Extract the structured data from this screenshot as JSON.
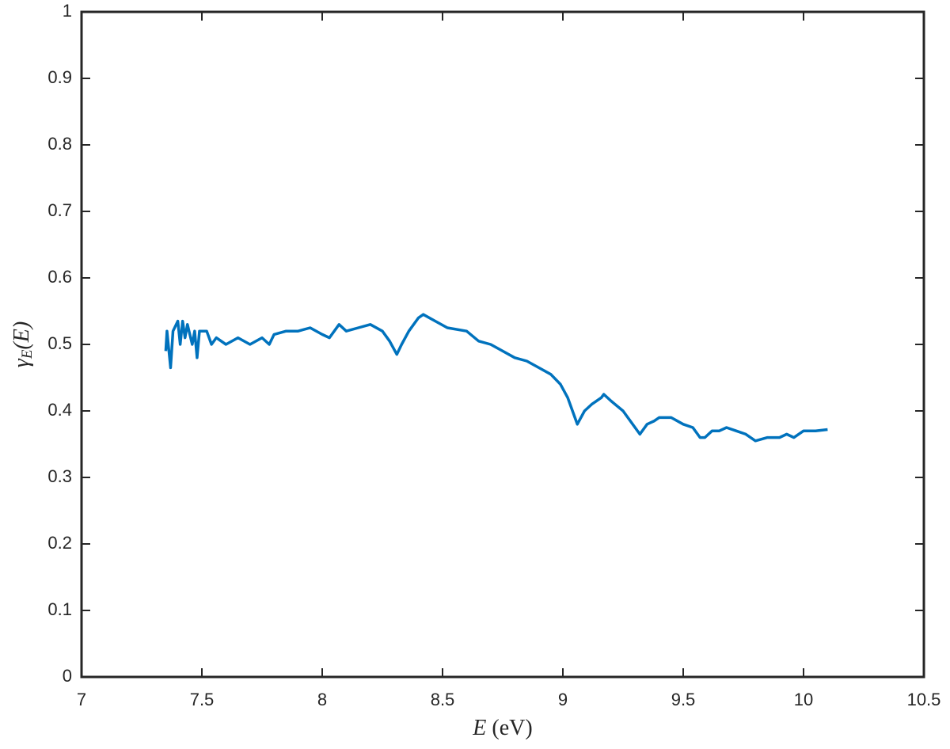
{
  "chart_data": {
    "type": "line",
    "x_label": {
      "variable": "E",
      "unit": "(eV)"
    },
    "y_label": {
      "symbol": "γ",
      "subscript": "E",
      "argument": "(E)"
    },
    "color": "#0072bd",
    "x": [
      7.35,
      7.355,
      7.37,
      7.38,
      7.4,
      7.41,
      7.42,
      7.43,
      7.44,
      7.46,
      7.47,
      7.48,
      7.49,
      7.52,
      7.54,
      7.56,
      7.6,
      7.65,
      7.7,
      7.75,
      7.78,
      7.8,
      7.85,
      7.9,
      7.95,
      8.0,
      8.03,
      8.07,
      8.1,
      8.15,
      8.2,
      8.25,
      8.28,
      8.31,
      8.33,
      8.36,
      8.4,
      8.42,
      8.47,
      8.52,
      8.6,
      8.65,
      8.7,
      8.75,
      8.8,
      8.85,
      8.9,
      8.95,
      8.99,
      9.02,
      9.05,
      9.06,
      9.09,
      9.12,
      9.16,
      9.17,
      9.2,
      9.25,
      9.3,
      9.32,
      9.35,
      9.38,
      9.4,
      9.45,
      9.5,
      9.54,
      9.57,
      9.59,
      9.62,
      9.65,
      9.68,
      9.72,
      9.76,
      9.8,
      9.85,
      9.9,
      9.93,
      9.96,
      10.0,
      10.05,
      10.1
    ],
    "values": [
      0.49,
      0.52,
      0.465,
      0.52,
      0.535,
      0.5,
      0.535,
      0.51,
      0.53,
      0.5,
      0.52,
      0.48,
      0.52,
      0.52,
      0.5,
      0.51,
      0.5,
      0.51,
      0.5,
      0.51,
      0.5,
      0.515,
      0.52,
      0.52,
      0.525,
      0.515,
      0.51,
      0.53,
      0.52,
      0.525,
      0.53,
      0.52,
      0.505,
      0.485,
      0.5,
      0.52,
      0.54,
      0.545,
      0.535,
      0.525,
      0.52,
      0.505,
      0.5,
      0.49,
      0.48,
      0.475,
      0.465,
      0.455,
      0.44,
      0.42,
      0.39,
      0.38,
      0.4,
      0.41,
      0.42,
      0.425,
      0.415,
      0.4,
      0.375,
      0.365,
      0.38,
      0.385,
      0.39,
      0.39,
      0.38,
      0.375,
      0.36,
      0.36,
      0.37,
      0.37,
      0.375,
      0.37,
      0.365,
      0.355,
      0.36,
      0.36,
      0.365,
      0.36,
      0.37,
      0.37,
      0.372
    ],
    "xlim": [
      7,
      10.5
    ],
    "xticks": [
      7,
      7.5,
      8,
      8.5,
      9,
      9.5,
      10,
      10.5
    ],
    "ylim": [
      0,
      1
    ],
    "yticks": [
      0,
      0.1,
      0.2,
      0.3,
      0.4,
      0.5,
      0.6,
      0.7,
      0.8,
      0.9,
      1
    ]
  }
}
